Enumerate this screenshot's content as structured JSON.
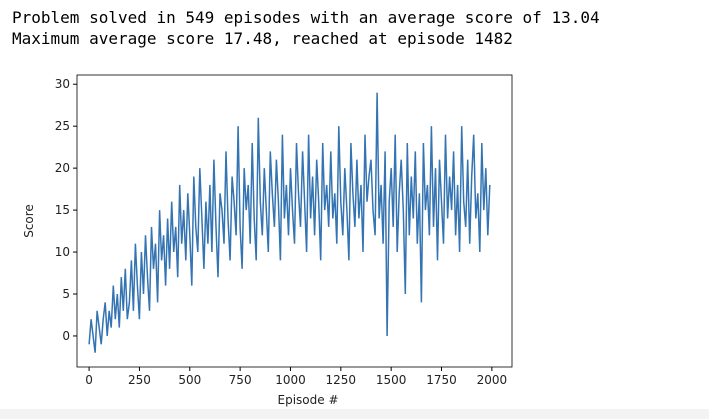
{
  "output_lines": [
    "Problem solved in 549 episodes with an average score of 13.04",
    "Maximum average score 17.48, reached at episode 1482"
  ],
  "chart_data": {
    "type": "line",
    "xlabel": "Episode #",
    "ylabel": "Score",
    "xlim": [
      -60,
      2100
    ],
    "ylim": [
      -3.7,
      31.1
    ],
    "xticks": [
      0,
      250,
      500,
      750,
      1000,
      1250,
      1500,
      1750,
      2000
    ],
    "yticks": [
      0,
      5,
      10,
      15,
      20,
      25,
      30
    ],
    "x": [
      0,
      10,
      20,
      30,
      40,
      50,
      60,
      70,
      80,
      90,
      100,
      110,
      120,
      130,
      140,
      150,
      160,
      170,
      180,
      190,
      200,
      210,
      220,
      230,
      240,
      250,
      260,
      270,
      280,
      290,
      300,
      310,
      320,
      330,
      340,
      350,
      360,
      370,
      380,
      390,
      400,
      410,
      420,
      430,
      440,
      450,
      460,
      470,
      480,
      490,
      500,
      510,
      520,
      530,
      540,
      550,
      560,
      570,
      580,
      590,
      600,
      610,
      620,
      630,
      640,
      650,
      660,
      670,
      680,
      690,
      700,
      710,
      720,
      730,
      740,
      750,
      760,
      770,
      780,
      790,
      800,
      810,
      820,
      830,
      840,
      850,
      860,
      870,
      880,
      890,
      900,
      910,
      920,
      930,
      940,
      950,
      960,
      970,
      980,
      990,
      1000,
      1010,
      1020,
      1030,
      1040,
      1050,
      1060,
      1070,
      1080,
      1090,
      1100,
      1110,
      1120,
      1130,
      1140,
      1150,
      1160,
      1170,
      1180,
      1190,
      1200,
      1210,
      1220,
      1230,
      1240,
      1250,
      1260,
      1270,
      1280,
      1290,
      1300,
      1310,
      1320,
      1330,
      1340,
      1350,
      1360,
      1370,
      1380,
      1390,
      1400,
      1410,
      1420,
      1430,
      1440,
      1450,
      1460,
      1470,
      1480,
      1490,
      1500,
      1510,
      1520,
      1530,
      1540,
      1550,
      1560,
      1570,
      1580,
      1590,
      1600,
      1610,
      1620,
      1630,
      1640,
      1650,
      1660,
      1670,
      1680,
      1690,
      1700,
      1710,
      1720,
      1730,
      1740,
      1750,
      1760,
      1770,
      1780,
      1790,
      1800,
      1810,
      1820,
      1830,
      1840,
      1850,
      1860,
      1870,
      1880,
      1890,
      1900,
      1910,
      1920,
      1930,
      1940,
      1950,
      1960,
      1970,
      1980,
      1990
    ],
    "series": [
      {
        "color": "#3474b2",
        "values": [
          -1,
          2,
          0,
          -2,
          3,
          1,
          -1,
          2,
          4,
          0,
          3,
          1,
          6,
          2,
          5,
          1,
          7,
          3,
          8,
          2,
          4,
          9,
          3,
          11,
          6,
          2,
          10,
          5,
          12,
          7,
          3,
          13,
          8,
          11,
          4,
          15,
          9,
          12,
          6,
          14,
          8,
          16,
          10,
          13,
          7,
          18,
          11,
          15,
          9,
          17,
          12,
          6,
          19,
          13,
          10,
          20,
          14,
          8,
          16,
          11,
          18,
          10,
          21,
          13,
          7,
          17,
          15,
          11,
          22,
          14,
          9,
          19,
          16,
          12,
          25,
          13,
          8,
          20,
          15,
          18,
          11,
          23,
          14,
          9,
          26,
          16,
          12,
          20,
          15,
          10,
          22,
          17,
          13,
          21,
          16,
          9,
          24,
          14,
          18,
          12,
          20,
          15,
          11,
          23,
          17,
          13,
          22,
          16,
          10,
          24,
          14,
          19,
          12,
          21,
          16,
          9,
          23,
          15,
          18,
          13,
          22,
          14,
          17,
          11,
          25,
          16,
          12,
          20,
          15,
          9,
          23,
          17,
          13,
          21,
          14,
          18,
          10,
          24,
          16,
          19,
          21,
          15,
          12,
          29,
          14,
          18,
          11,
          22,
          0,
          16,
          20,
          13,
          24,
          10,
          17,
          21,
          15,
          5,
          23,
          12,
          19,
          14,
          22,
          11,
          17,
          4,
          23,
          15,
          18,
          12,
          25,
          13,
          20,
          9,
          21,
          16,
          11,
          24,
          14,
          19,
          15,
          22,
          12,
          18,
          10,
          25,
          16,
          13,
          21,
          11,
          19,
          24,
          14,
          17,
          10,
          23,
          15,
          20,
          12,
          18
        ]
      }
    ]
  }
}
